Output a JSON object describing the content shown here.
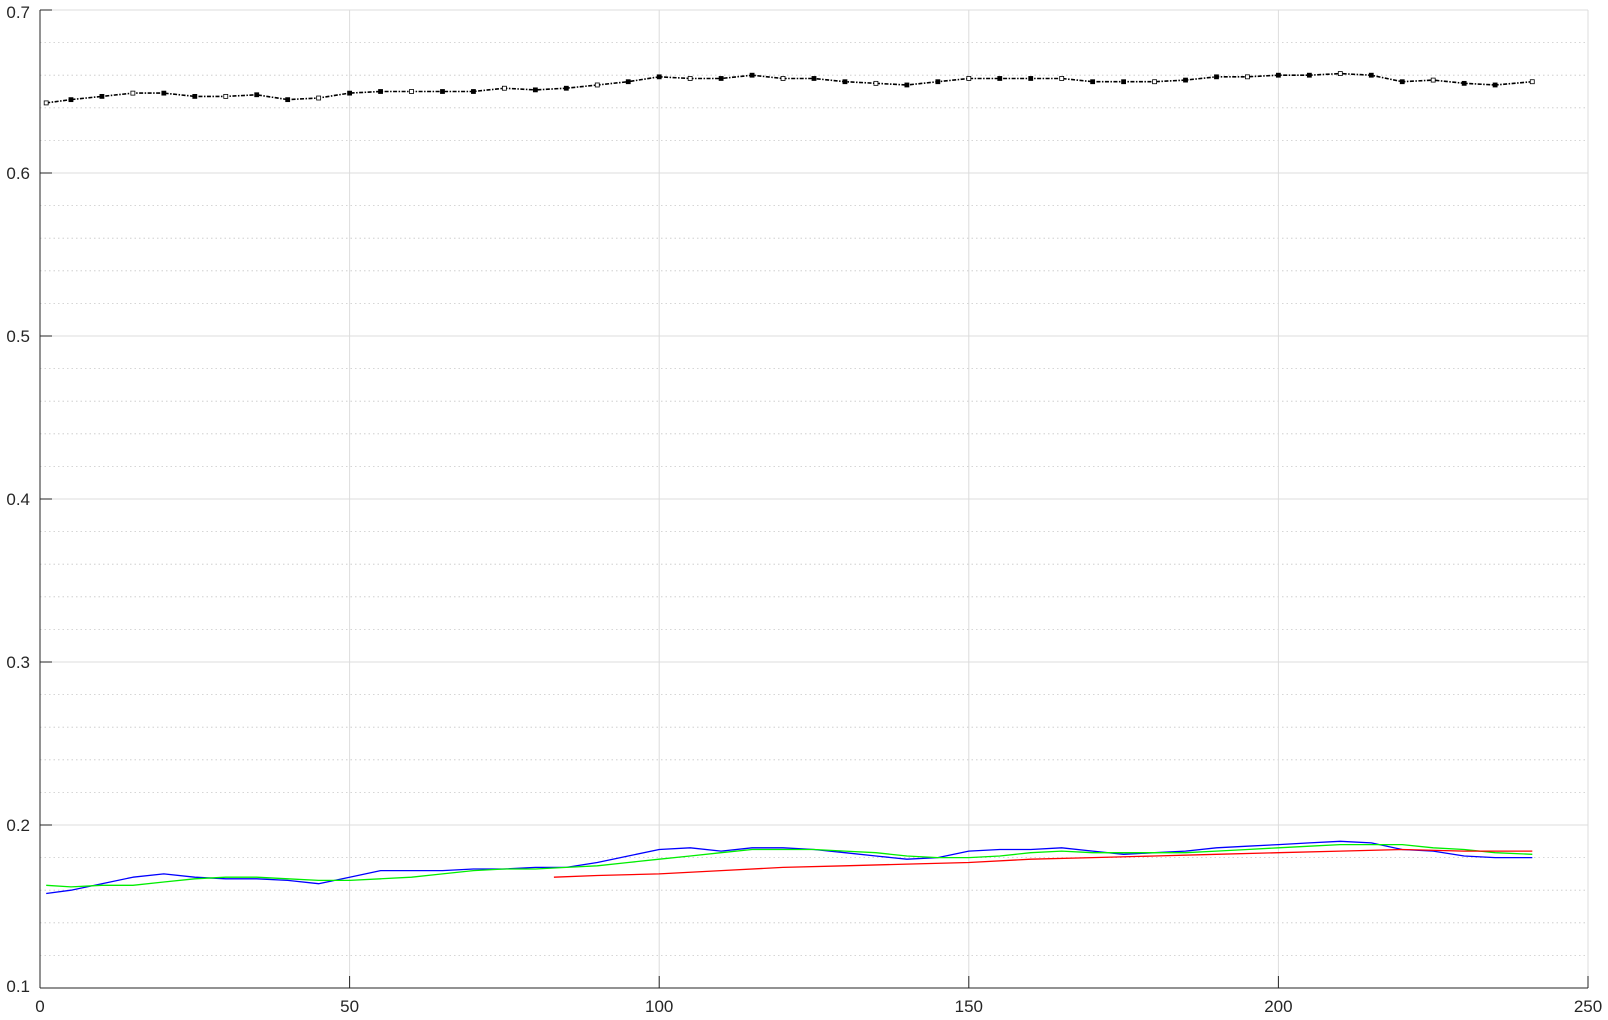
{
  "chart_data": {
    "type": "line",
    "title": "",
    "xlabel": "",
    "ylabel": "",
    "xlim": [
      0,
      250
    ],
    "ylim": [
      0.1,
      0.7
    ],
    "x_ticks": [
      0,
      50,
      100,
      150,
      200,
      250
    ],
    "y_ticks": [
      0.1,
      0.2,
      0.3,
      0.4,
      0.5,
      0.6,
      0.7
    ],
    "x_tick_labels": [
      "0",
      "50",
      "100",
      "150",
      "200",
      "250"
    ],
    "y_tick_labels": [
      "0.1",
      "0.2",
      "0.3",
      "0.4",
      "0.5",
      "0.6",
      "0.7"
    ],
    "grid": "major solid, minor dotted on y",
    "legend": "none",
    "series": [
      {
        "color": "#000000",
        "style": "dash-dot with markers",
        "x": [
          1,
          5,
          10,
          15,
          20,
          25,
          30,
          35,
          40,
          45,
          50,
          55,
          60,
          65,
          70,
          75,
          80,
          85,
          90,
          95,
          100,
          105,
          110,
          115,
          120,
          125,
          130,
          135,
          140,
          145,
          150,
          155,
          160,
          165,
          170,
          175,
          180,
          185,
          190,
          195,
          200,
          205,
          210,
          215,
          220,
          225,
          230,
          235,
          241
        ],
        "y": [
          0.643,
          0.645,
          0.647,
          0.649,
          0.649,
          0.647,
          0.647,
          0.648,
          0.645,
          0.646,
          0.649,
          0.65,
          0.65,
          0.65,
          0.65,
          0.652,
          0.651,
          0.652,
          0.654,
          0.656,
          0.659,
          0.658,
          0.658,
          0.66,
          0.658,
          0.658,
          0.656,
          0.655,
          0.654,
          0.656,
          0.658,
          0.658,
          0.658,
          0.658,
          0.656,
          0.656,
          0.656,
          0.657,
          0.659,
          0.659,
          0.66,
          0.66,
          0.661,
          0.66,
          0.656,
          0.657,
          0.655,
          0.654,
          0.656
        ]
      },
      {
        "color": "#0000ff",
        "style": "solid",
        "x": [
          1,
          5,
          10,
          15,
          20,
          25,
          30,
          35,
          40,
          45,
          50,
          55,
          60,
          65,
          70,
          75,
          80,
          85,
          90,
          95,
          100,
          105,
          110,
          115,
          120,
          125,
          130,
          135,
          140,
          145,
          150,
          155,
          160,
          165,
          170,
          175,
          180,
          185,
          190,
          195,
          200,
          205,
          210,
          215,
          220,
          225,
          230,
          235,
          241
        ],
        "y": [
          0.158,
          0.16,
          0.164,
          0.168,
          0.17,
          0.168,
          0.167,
          0.167,
          0.166,
          0.164,
          0.168,
          0.172,
          0.172,
          0.172,
          0.173,
          0.173,
          0.174,
          0.174,
          0.177,
          0.181,
          0.185,
          0.186,
          0.184,
          0.186,
          0.186,
          0.185,
          0.183,
          0.181,
          0.179,
          0.18,
          0.184,
          0.185,
          0.185,
          0.186,
          0.184,
          0.182,
          0.183,
          0.184,
          0.186,
          0.187,
          0.188,
          0.189,
          0.19,
          0.189,
          0.185,
          0.184,
          0.181,
          0.18,
          0.18
        ]
      },
      {
        "color": "#00ee00",
        "style": "solid",
        "x": [
          1,
          5,
          10,
          15,
          20,
          25,
          30,
          35,
          40,
          45,
          50,
          55,
          60,
          65,
          70,
          75,
          80,
          85,
          90,
          95,
          100,
          105,
          110,
          115,
          120,
          125,
          130,
          135,
          140,
          145,
          150,
          155,
          160,
          165,
          170,
          175,
          180,
          185,
          190,
          195,
          200,
          205,
          210,
          215,
          220,
          225,
          230,
          235,
          241
        ],
        "y": [
          0.163,
          0.162,
          0.163,
          0.163,
          0.165,
          0.167,
          0.168,
          0.168,
          0.167,
          0.166,
          0.166,
          0.167,
          0.168,
          0.17,
          0.172,
          0.173,
          0.173,
          0.174,
          0.175,
          0.177,
          0.179,
          0.181,
          0.183,
          0.185,
          0.185,
          0.185,
          0.184,
          0.183,
          0.181,
          0.18,
          0.18,
          0.181,
          0.183,
          0.184,
          0.183,
          0.183,
          0.183,
          0.183,
          0.184,
          0.185,
          0.186,
          0.187,
          0.188,
          0.188,
          0.188,
          0.186,
          0.185,
          0.183,
          0.182
        ]
      },
      {
        "color": "#ff0000",
        "style": "solid",
        "x": [
          83,
          90,
          100,
          110,
          120,
          130,
          140,
          150,
          160,
          170,
          180,
          190,
          200,
          210,
          220,
          230,
          241
        ],
        "y": [
          0.168,
          0.169,
          0.17,
          0.172,
          0.174,
          0.175,
          0.176,
          0.177,
          0.179,
          0.18,
          0.181,
          0.182,
          0.183,
          0.184,
          0.185,
          0.184,
          0.184
        ]
      }
    ]
  }
}
